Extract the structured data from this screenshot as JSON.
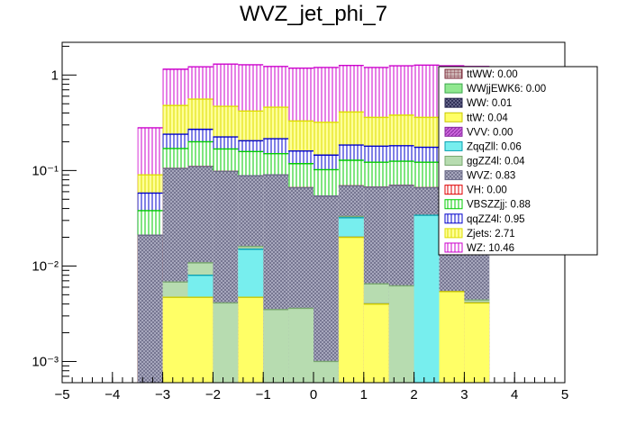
{
  "chart_data": {
    "type": "bar",
    "stacked": true,
    "log_y": true,
    "title": "WVZ_jet_phi_7",
    "xlabel": "",
    "ylabel": "",
    "xlim": [
      -5,
      5
    ],
    "ylim": [
      0.0006,
      2.2
    ],
    "bin_edges": [
      -3.5,
      -3.0,
      -2.5,
      -2.0,
      -1.5,
      -1.0,
      -0.5,
      0.0,
      0.5,
      1.0,
      1.5,
      2.0,
      2.5,
      3.0,
      3.5
    ],
    "x_ticks": [
      -5,
      -4,
      -3,
      -2,
      -1,
      0,
      1,
      2,
      3,
      4,
      5
    ],
    "x_tick_labels": [
      "−5",
      "−4",
      "−3",
      "−2",
      "−1",
      "0",
      "1",
      "2",
      "3",
      "4",
      "5"
    ],
    "y_ticks": [
      0.001,
      0.01,
      0.1,
      1
    ],
    "y_tick_labels": [
      "10⁻³",
      "10⁻²",
      "10⁻¹",
      "1"
    ],
    "stack_order_bottom_to_top": [
      "ttWW",
      "WWjjEWK6",
      "WW",
      "ttW",
      "VVV",
      "ZqqZll",
      "ggZZ4l",
      "WVZ",
      "VH",
      "VBSZZjj",
      "qqZZ4l",
      "Zjets",
      "WZ"
    ],
    "cumulative_tops": {
      "ttW": [
        0,
        0.0047,
        0.0047,
        0,
        0.0047,
        0,
        0,
        0,
        0.02,
        0.004,
        0,
        0,
        0.0054,
        0.0041
      ],
      "VVV": [
        0,
        0.0047,
        0.0047,
        0,
        0.0047,
        0,
        0,
        0,
        0.02,
        0.004,
        0,
        0,
        0.0054,
        0.0041
      ],
      "ZqqZll": [
        0.0006,
        0.0047,
        0.008,
        0,
        0.015,
        0,
        0,
        0,
        0.032,
        0.004,
        0,
        0.034,
        0.0054,
        0.0041
      ],
      "ggZZ4l": [
        0.0006,
        0.0068,
        0.0108,
        0.0041,
        0.016,
        0.0035,
        0.0036,
        0.001,
        0.033,
        0.0065,
        0.0062,
        0.034,
        0.0054,
        0.0044
      ],
      "WVZ": [
        0.021,
        0.105,
        0.11,
        0.098,
        0.088,
        0.09,
        0.066,
        0.054,
        0.069,
        0.067,
        0.07,
        0.066,
        0.075,
        0.078
      ],
      "VH": [
        0.021,
        0.105,
        0.11,
        0.098,
        0.088,
        0.09,
        0.066,
        0.054,
        0.069,
        0.067,
        0.07,
        0.066,
        0.075,
        0.078
      ],
      "VBSZZjj": [
        0.038,
        0.17,
        0.2,
        0.168,
        0.158,
        0.15,
        0.118,
        0.102,
        0.128,
        0.122,
        0.125,
        0.122,
        0.138,
        0.145
      ],
      "qqZZ4l": [
        0.058,
        0.24,
        0.27,
        0.225,
        0.205,
        0.215,
        0.16,
        0.145,
        0.185,
        0.18,
        0.182,
        0.175,
        0.195,
        0.21
      ],
      "Zjets": [
        0.09,
        0.48,
        0.56,
        0.47,
        0.42,
        0.46,
        0.33,
        0.32,
        0.41,
        0.36,
        0.38,
        0.36,
        0.41,
        0.44
      ],
      "WZ": [
        0.28,
        1.15,
        1.22,
        1.3,
        1.28,
        1.23,
        1.18,
        1.2,
        1.26,
        1.2,
        1.25,
        1.27,
        1.25,
        1.23
      ]
    },
    "legend_position": "top-right",
    "legend": [
      {
        "name": "ttWW",
        "label": "ttWW: 0.00",
        "fill": "#ccb3b3",
        "stroke": "#7f2f3f",
        "pattern": "grid"
      },
      {
        "name": "WWjjEWK6",
        "label": "WWjjEWK6: 0.00",
        "fill": "#90e890",
        "stroke": "#3aa84a",
        "pattern": "solid"
      },
      {
        "name": "WW",
        "label": "WW: 0.01",
        "fill": "#2a2a52",
        "stroke": "#2a2a52",
        "pattern": "dense"
      },
      {
        "name": "ttW",
        "label": "ttW: 0.04",
        "fill": "#ffff66",
        "stroke": "#c8c800",
        "pattern": "solid"
      },
      {
        "name": "VVV",
        "label": "VVV: 0.00",
        "fill": "#cc66dd",
        "stroke": "#8a2aa0",
        "pattern": "diag"
      },
      {
        "name": "ZqqZll",
        "label": "ZqqZll: 0.06",
        "fill": "#77eeee",
        "stroke": "#0aa0b0",
        "pattern": "solid"
      },
      {
        "name": "ggZZ4l",
        "label": "ggZZ4l: 0.04",
        "fill": "#b7dcb0",
        "stroke": "#7aa870",
        "pattern": "solid"
      },
      {
        "name": "WVZ",
        "label": "WVZ: 0.83",
        "fill": "#b3b3c8",
        "stroke": "#6b6b88",
        "pattern": "crosshatch"
      },
      {
        "name": "VH",
        "label": "VH: 0.00",
        "fill": "#ffffff",
        "stroke": "#e00000",
        "pattern": "vlines"
      },
      {
        "name": "VBSZZjj",
        "label": "VBSZZjj: 0.88",
        "fill": "#ffffff",
        "stroke": "#00cc00",
        "pattern": "vlines"
      },
      {
        "name": "qqZZ4l",
        "label": "qqZZ4l: 0.95",
        "fill": "#ffffff",
        "stroke": "#0000cc",
        "pattern": "vlines"
      },
      {
        "name": "Zjets",
        "label": "Zjets: 2.71",
        "fill": "#ffff99",
        "stroke": "#dede00",
        "pattern": "vlines"
      },
      {
        "name": "WZ",
        "label": "WZ: 10.46",
        "fill": "#ffffff",
        "stroke": "#cc00cc",
        "pattern": "vlines"
      }
    ]
  }
}
